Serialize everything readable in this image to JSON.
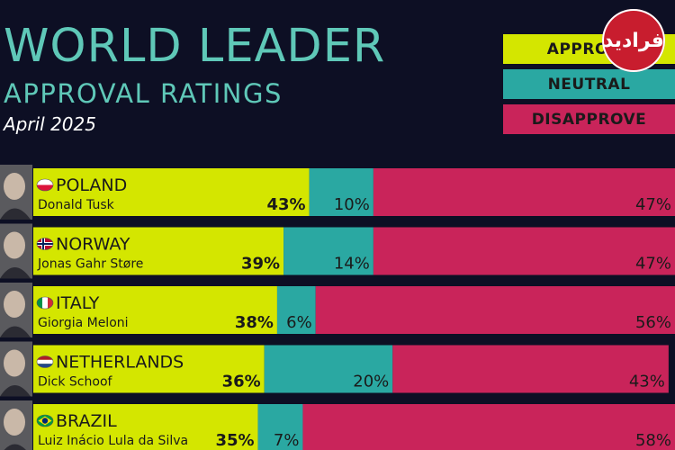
{
  "header": {
    "title": "WORLD LEADER",
    "subtitle": "APPROVAL RATINGS",
    "date": "April 2025"
  },
  "legend": {
    "approve": "APPROVE",
    "neutral": "NEUTRAL",
    "disapprove": "DISAPPROVE"
  },
  "logo_text": "فرادید",
  "colors": {
    "background": "#0d0f24",
    "approve": "#d4e600",
    "neutral": "#2aa8a2",
    "disapprove": "#c9245a",
    "title": "#5fc8b8"
  },
  "chart_data": {
    "type": "bar",
    "stacked": true,
    "orientation": "horizontal",
    "title": "WORLD LEADER",
    "subtitle": "APPROVAL RATINGS",
    "categories": [
      "POLAND",
      "NORWAY",
      "ITALY",
      "NETHERLANDS",
      "BRAZIL"
    ],
    "leaders": [
      "Donald Tusk",
      "Jonas Gahr Støre",
      "Giorgia Meloni",
      "Dick Schoof",
      "Luiz Inácio Lula da Silva"
    ],
    "flags": [
      "flag-poland",
      "flag-norway",
      "flag-italy",
      "flag-netherlands",
      "flag-brazil"
    ],
    "series": [
      {
        "name": "APPROVE",
        "values": [
          43,
          39,
          38,
          36,
          35
        ]
      },
      {
        "name": "NEUTRAL",
        "values": [
          10,
          14,
          6,
          20,
          7
        ]
      },
      {
        "name": "DISAPPROVE",
        "values": [
          47,
          47,
          56,
          43,
          58
        ]
      }
    ],
    "unit": "%",
    "xlim": [
      0,
      100
    ],
    "legend_position": "top-right"
  }
}
